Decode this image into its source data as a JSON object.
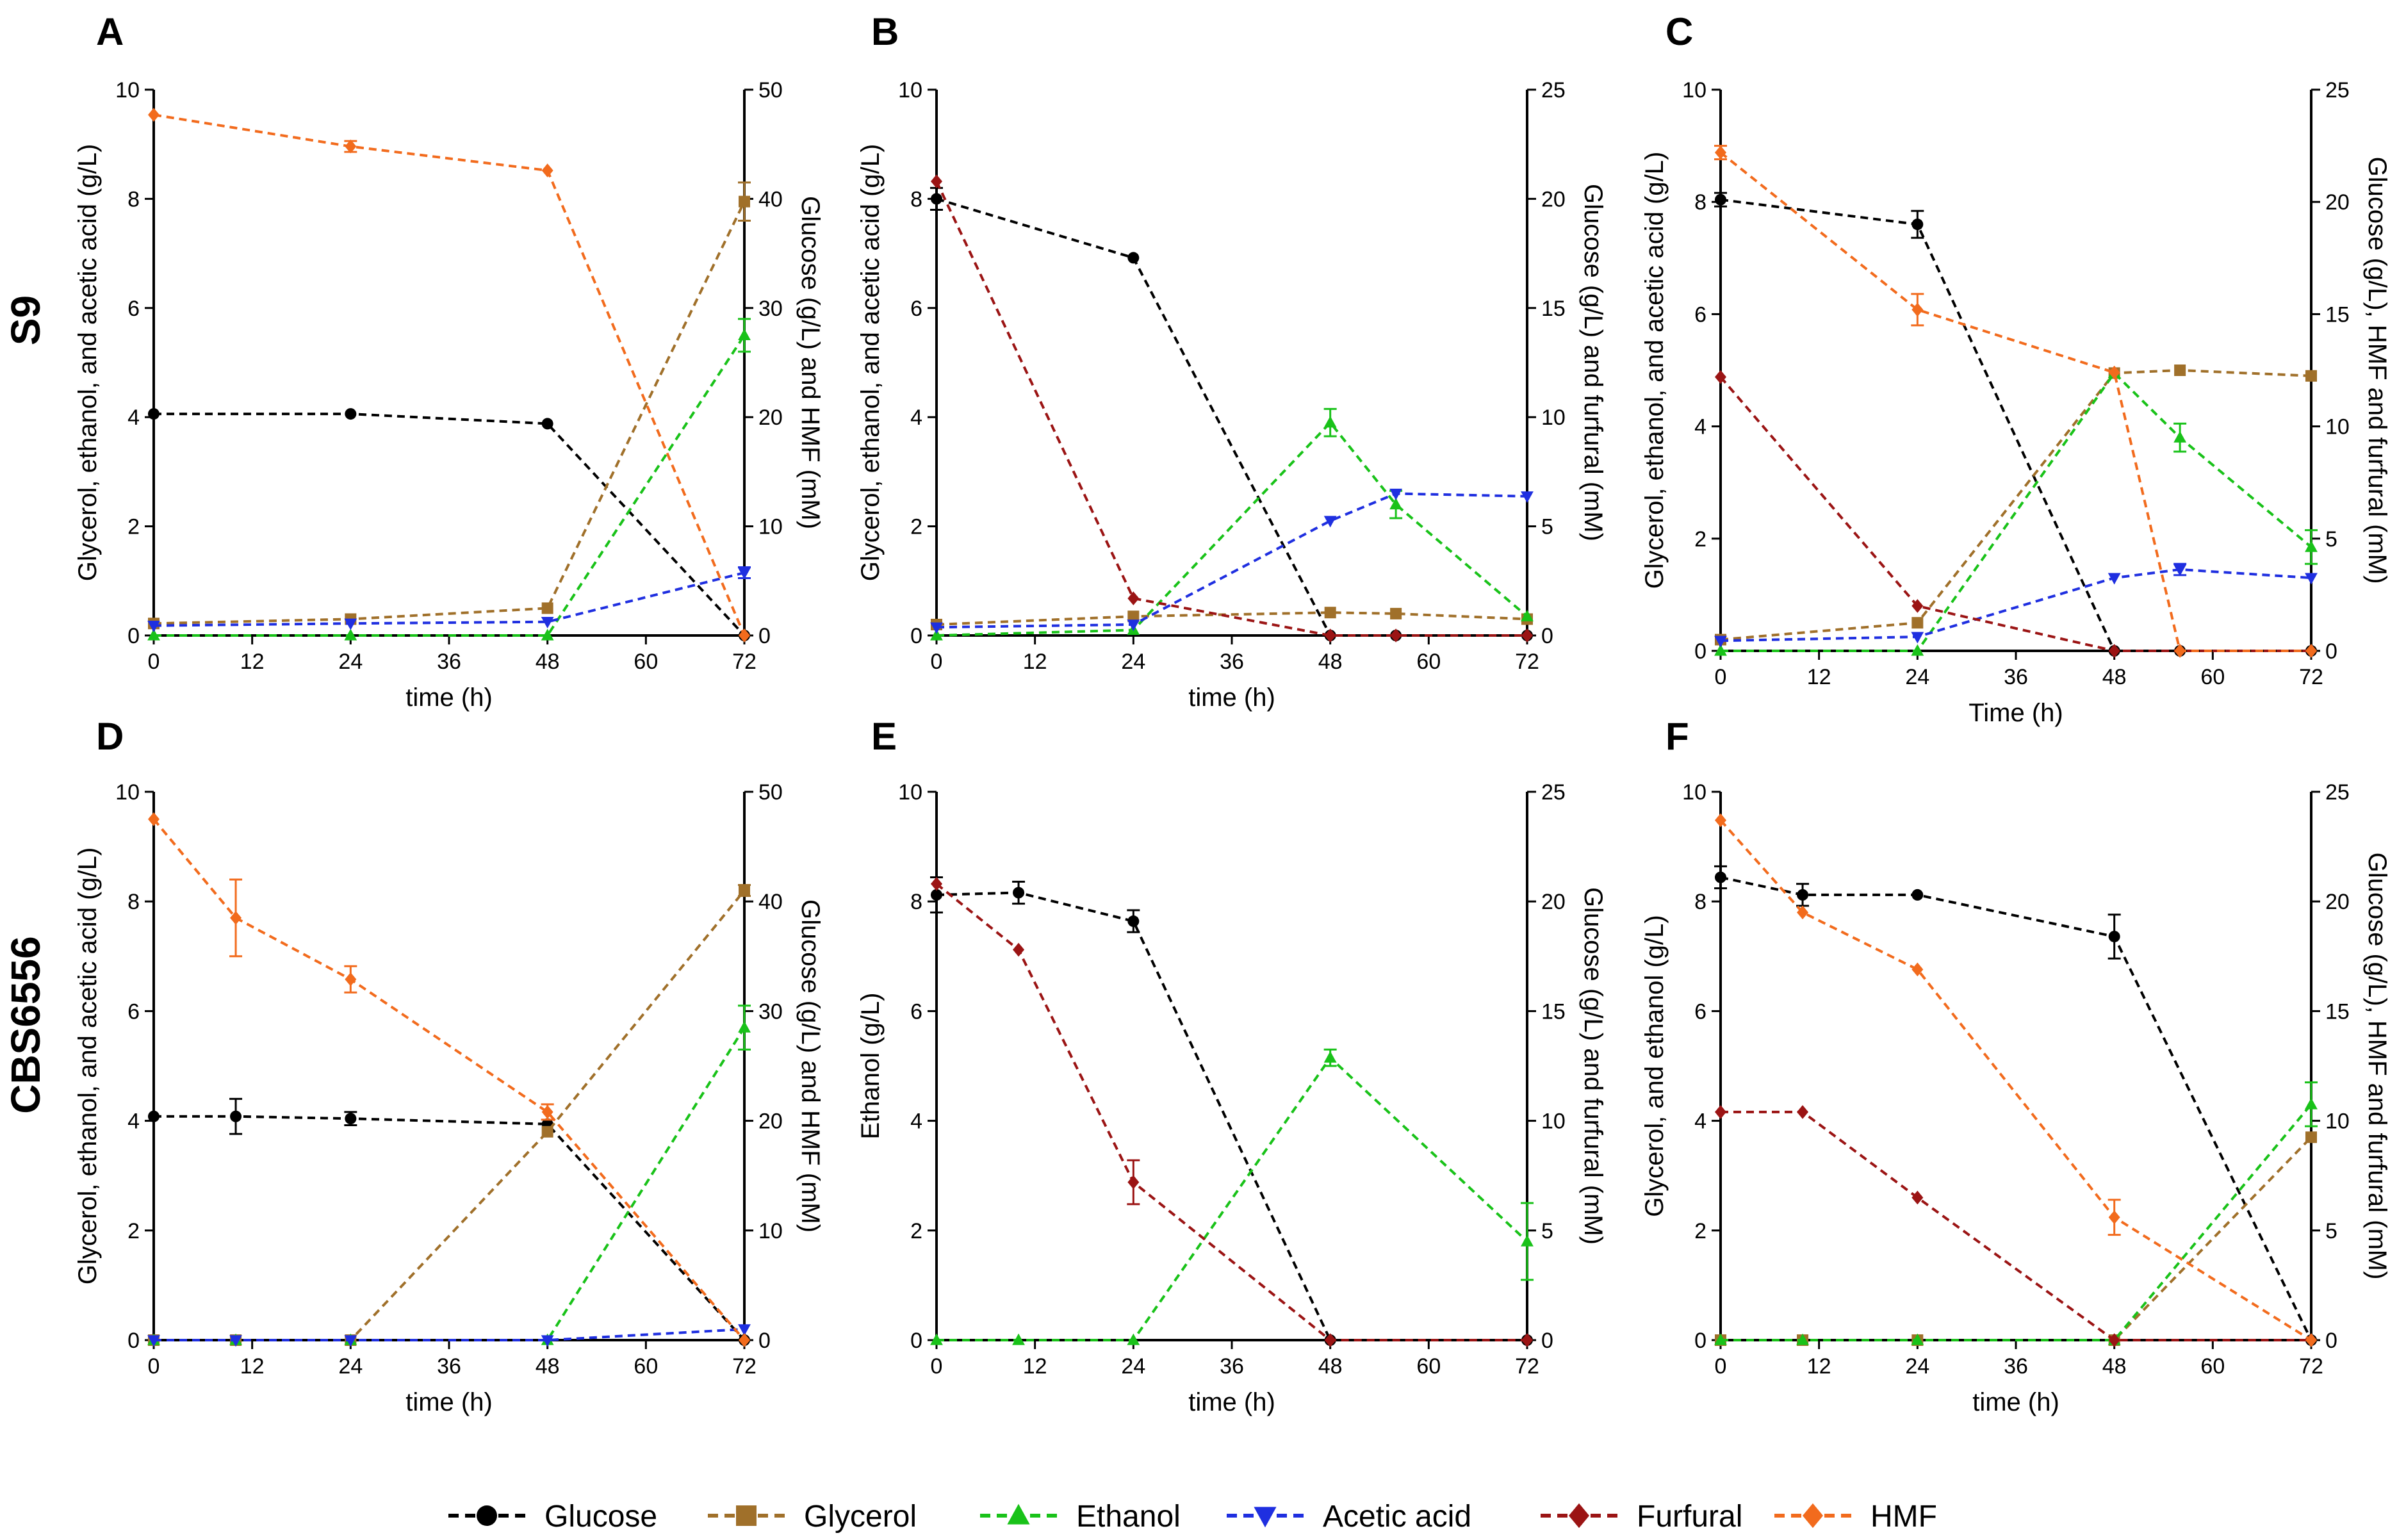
{
  "figure": {
    "row_labels": [
      "S9",
      "CBS6556"
    ],
    "legend": [
      {
        "name": "Glucose",
        "color": "#000000",
        "marker": "circle"
      },
      {
        "name": "Glycerol",
        "color": "#A0702A",
        "marker": "square"
      },
      {
        "name": "Ethanol",
        "color": "#19C219",
        "marker": "triangle-up"
      },
      {
        "name": "Acetic acid",
        "color": "#1F2FE0",
        "marker": "triangle-down"
      },
      {
        "name": "Furfural",
        "color": "#9B1414",
        "marker": "diamond"
      },
      {
        "name": "HMF",
        "color": "#F26B1D",
        "marker": "diamond"
      }
    ]
  },
  "chart_data": [
    {
      "panel": "A",
      "type": "line",
      "xlabel": "time (h)",
      "ylabel": "Glycerol, ethanol, and acetic acid (g/L)",
      "y2label": "Glucose (g/L) and HMF (mM)",
      "xlim": [
        0,
        72
      ],
      "xticks": [
        0,
        12,
        24,
        36,
        48,
        60,
        72
      ],
      "ylim": [
        0,
        10
      ],
      "yticks": [
        0,
        2,
        4,
        6,
        8,
        10
      ],
      "y2lim": [
        0,
        50
      ],
      "y2ticks": [
        0,
        10,
        20,
        30,
        40,
        50
      ],
      "series": [
        {
          "name": "Glucose",
          "axis": "right",
          "x": [
            0,
            24,
            48,
            72
          ],
          "y": [
            20.3,
            20.3,
            19.4,
            0
          ],
          "err": [
            0,
            0,
            0,
            0
          ]
        },
        {
          "name": "Glycerol",
          "axis": "left",
          "x": [
            0,
            24,
            48,
            72
          ],
          "y": [
            0.22,
            0.3,
            0.5,
            7.95
          ],
          "err": [
            0,
            0,
            0,
            0.35
          ]
        },
        {
          "name": "Ethanol",
          "axis": "left",
          "x": [
            0,
            24,
            48,
            72
          ],
          "y": [
            0,
            0,
            0,
            5.5
          ],
          "err": [
            0,
            0,
            0,
            0.3
          ]
        },
        {
          "name": "Acetic acid",
          "axis": "left",
          "x": [
            0,
            24,
            48,
            72
          ],
          "y": [
            0.18,
            0.22,
            0.25,
            1.15
          ],
          "err": [
            0,
            0,
            0,
            0.1
          ]
        },
        {
          "name": "HMF",
          "axis": "right",
          "x": [
            0,
            24,
            48,
            72
          ],
          "y": [
            47.7,
            44.8,
            42.6,
            0
          ],
          "err": [
            0,
            0.5,
            0,
            0
          ]
        }
      ]
    },
    {
      "panel": "B",
      "type": "line",
      "xlabel": "time (h)",
      "ylabel": "Glycerol, ethanol, and acetic acid (g/L)",
      "y2label": "Glucose (g/L) and furfural (mM)",
      "xlim": [
        0,
        72
      ],
      "xticks": [
        0,
        12,
        24,
        36,
        48,
        60,
        72
      ],
      "ylim": [
        0,
        10
      ],
      "yticks": [
        0,
        2,
        4,
        6,
        8,
        10
      ],
      "y2lim": [
        0,
        25
      ],
      "y2ticks": [
        0,
        5,
        10,
        15,
        20,
        25
      ],
      "series": [
        {
          "name": "Glucose",
          "axis": "right",
          "x": [
            0,
            24,
            48,
            56,
            72
          ],
          "y": [
            20,
            17.3,
            0,
            0,
            0
          ],
          "err": [
            0.5,
            0,
            0,
            0,
            0
          ]
        },
        {
          "name": "Glycerol",
          "axis": "left",
          "x": [
            0,
            24,
            48,
            56,
            72
          ],
          "y": [
            0.2,
            0.35,
            0.42,
            0.4,
            0.3
          ],
          "err": [
            0,
            0,
            0,
            0,
            0
          ]
        },
        {
          "name": "Ethanol",
          "axis": "left",
          "x": [
            0,
            24,
            48,
            56,
            72
          ],
          "y": [
            0,
            0.1,
            3.9,
            2.4,
            0.35
          ],
          "err": [
            0,
            0,
            0.25,
            0.25,
            0
          ]
        },
        {
          "name": "Acetic acid",
          "axis": "left",
          "x": [
            0,
            24,
            48,
            56,
            72
          ],
          "y": [
            0.15,
            0.2,
            2.1,
            2.6,
            2.55
          ],
          "err": [
            0,
            0,
            0,
            0,
            0
          ]
        },
        {
          "name": "Furfural",
          "axis": "right",
          "x": [
            0,
            24,
            48,
            56,
            72
          ],
          "y": [
            20.8,
            1.7,
            0,
            0,
            0
          ],
          "err": [
            0,
            0,
            0,
            0,
            0
          ]
        }
      ]
    },
    {
      "panel": "C",
      "type": "line",
      "xlabel": "Time (h)",
      "ylabel": "Glycerol, ethanol, and acetic acid (g/L)",
      "y2label": "Glucose (g/L), HMF and furfural (mM)",
      "xlim": [
        0,
        72
      ],
      "xticks": [
        0,
        12,
        24,
        36,
        48,
        60,
        72
      ],
      "ylim": [
        0,
        10
      ],
      "yticks": [
        0,
        2,
        4,
        6,
        8,
        10
      ],
      "y2lim": [
        0,
        25
      ],
      "y2ticks": [
        0,
        5,
        10,
        15,
        20,
        25
      ],
      "series": [
        {
          "name": "Glucose",
          "axis": "right",
          "x": [
            0,
            24,
            48,
            56,
            72
          ],
          "y": [
            20.1,
            19,
            0,
            0,
            0
          ],
          "err": [
            0.3,
            0.6,
            0,
            0,
            0
          ]
        },
        {
          "name": "Glycerol",
          "axis": "left",
          "x": [
            0,
            24,
            48,
            56,
            72
          ],
          "y": [
            0.2,
            0.5,
            4.95,
            5.0,
            4.9
          ],
          "err": [
            0,
            0,
            0,
            0,
            0
          ]
        },
        {
          "name": "Ethanol",
          "axis": "left",
          "x": [
            0,
            24,
            48,
            56,
            72
          ],
          "y": [
            0,
            0,
            4.95,
            3.8,
            1.85
          ],
          "err": [
            0,
            0,
            0,
            0.25,
            0.3
          ]
        },
        {
          "name": "Acetic acid",
          "axis": "left",
          "x": [
            0,
            24,
            48,
            56,
            72
          ],
          "y": [
            0.18,
            0.25,
            1.3,
            1.45,
            1.3
          ],
          "err": [
            0,
            0,
            0,
            0.1,
            0
          ]
        },
        {
          "name": "Furfural",
          "axis": "right",
          "x": [
            0,
            24,
            48,
            56,
            72
          ],
          "y": [
            12.2,
            2.0,
            0,
            0,
            0
          ],
          "err": [
            0,
            0,
            0,
            0,
            0
          ]
        },
        {
          "name": "HMF",
          "axis": "right",
          "x": [
            0,
            24,
            48,
            56,
            72
          ],
          "y": [
            22.2,
            15.2,
            12.4,
            0,
            0
          ],
          "err": [
            0.3,
            0.7,
            0,
            0,
            0
          ]
        }
      ]
    },
    {
      "panel": "D",
      "type": "line",
      "xlabel": "time (h)",
      "ylabel": "Glycerol, ethanol, and acetic acid (g/L)",
      "y2label": "Glucose (g/L) and HMF (mM)",
      "xlim": [
        0,
        72
      ],
      "xticks": [
        0,
        12,
        24,
        36,
        48,
        60,
        72
      ],
      "ylim": [
        0,
        10
      ],
      "yticks": [
        0,
        2,
        4,
        6,
        8,
        10
      ],
      "y2lim": [
        0,
        50
      ],
      "y2ticks": [
        0,
        10,
        20,
        30,
        40,
        50
      ],
      "series": [
        {
          "name": "Glucose",
          "axis": "right",
          "x": [
            0,
            10,
            24,
            48,
            72
          ],
          "y": [
            20.4,
            20.4,
            20.2,
            19.7,
            0
          ],
          "err": [
            0,
            1.6,
            0.6,
            0,
            0
          ]
        },
        {
          "name": "Glycerol",
          "axis": "left",
          "x": [
            0,
            10,
            24,
            48,
            72
          ],
          "y": [
            0,
            0,
            0,
            3.8,
            8.2
          ],
          "err": [
            0,
            0,
            0,
            0,
            0.1
          ]
        },
        {
          "name": "Ethanol",
          "axis": "left",
          "x": [
            0,
            10,
            24,
            48,
            72
          ],
          "y": [
            0,
            0,
            0,
            0,
            5.7
          ],
          "err": [
            0,
            0,
            0,
            0,
            0.4
          ]
        },
        {
          "name": "Acetic acid",
          "axis": "left",
          "x": [
            0,
            10,
            24,
            48,
            72
          ],
          "y": [
            0,
            0,
            0,
            0,
            0.2
          ],
          "err": [
            0,
            0,
            0,
            0,
            0
          ]
        },
        {
          "name": "HMF",
          "axis": "right",
          "x": [
            0,
            10,
            24,
            48,
            72
          ],
          "y": [
            47.5,
            38.5,
            32.9,
            20.8,
            0
          ],
          "err": [
            0,
            3.5,
            1.2,
            0.7,
            0
          ]
        }
      ]
    },
    {
      "panel": "E",
      "type": "line",
      "xlabel": "time (h)",
      "ylabel": "Ethanol (g/L)",
      "y2label": "Glucose (g/L) and furfural (mM)",
      "xlim": [
        0,
        72
      ],
      "xticks": [
        0,
        12,
        24,
        36,
        48,
        60,
        72
      ],
      "ylim": [
        0,
        10
      ],
      "yticks": [
        0,
        2,
        4,
        6,
        8,
        10
      ],
      "y2lim": [
        0,
        25
      ],
      "y2ticks": [
        0,
        5,
        10,
        15,
        20,
        25
      ],
      "series": [
        {
          "name": "Glucose",
          "axis": "right",
          "x": [
            0,
            10,
            24,
            48,
            72
          ],
          "y": [
            20.3,
            20.4,
            19.1,
            0,
            0
          ],
          "err": [
            0.8,
            0.5,
            0.5,
            0,
            0
          ]
        },
        {
          "name": "Ethanol",
          "axis": "left",
          "x": [
            0,
            10,
            24,
            48,
            72
          ],
          "y": [
            0,
            0,
            0,
            5.15,
            1.8
          ],
          "err": [
            0,
            0,
            0,
            0.15,
            0.7
          ]
        },
        {
          "name": "Furfural",
          "axis": "right",
          "x": [
            0,
            10,
            24,
            48,
            72
          ],
          "y": [
            20.8,
            17.8,
            7.2,
            0,
            0
          ],
          "err": [
            0,
            0,
            1.0,
            0,
            0
          ]
        }
      ]
    },
    {
      "panel": "F",
      "type": "line",
      "xlabel": "time (h)",
      "ylabel": "Glycerol, and ethanol (g/L)",
      "y2label": "Glucose (g/L), HMF and furfural (mM)",
      "xlim": [
        0,
        72
      ],
      "xticks": [
        0,
        12,
        24,
        36,
        48,
        60,
        72
      ],
      "ylim": [
        0,
        10
      ],
      "yticks": [
        0,
        2,
        4,
        6,
        8,
        10
      ],
      "y2lim": [
        0,
        25
      ],
      "y2ticks": [
        0,
        5,
        10,
        15,
        20,
        25
      ],
      "series": [
        {
          "name": "Glucose",
          "axis": "right",
          "x": [
            0,
            10,
            24,
            48,
            72
          ],
          "y": [
            21.1,
            20.3,
            20.3,
            18.4,
            0
          ],
          "err": [
            0.5,
            0.5,
            0,
            1.0,
            0
          ]
        },
        {
          "name": "Glycerol",
          "axis": "left",
          "x": [
            0,
            10,
            24,
            48,
            72
          ],
          "y": [
            0,
            0,
            0,
            0,
            3.7
          ],
          "err": [
            0,
            0,
            0,
            0,
            0
          ]
        },
        {
          "name": "Ethanol",
          "axis": "left",
          "x": [
            0,
            10,
            24,
            48,
            72
          ],
          "y": [
            0,
            0,
            0,
            0,
            4.3
          ],
          "err": [
            0,
            0,
            0,
            0,
            0.4
          ]
        },
        {
          "name": "Furfural",
          "axis": "right",
          "x": [
            0,
            10,
            24,
            48,
            72
          ],
          "y": [
            10.4,
            10.4,
            6.5,
            0,
            0
          ],
          "err": [
            0,
            0,
            0,
            0,
            0
          ]
        },
        {
          "name": "HMF",
          "axis": "right",
          "x": [
            0,
            10,
            24,
            48,
            72
          ],
          "y": [
            23.7,
            19.5,
            16.9,
            5.6,
            0
          ],
          "err": [
            0,
            0,
            0,
            0.8,
            0
          ]
        }
      ]
    }
  ]
}
